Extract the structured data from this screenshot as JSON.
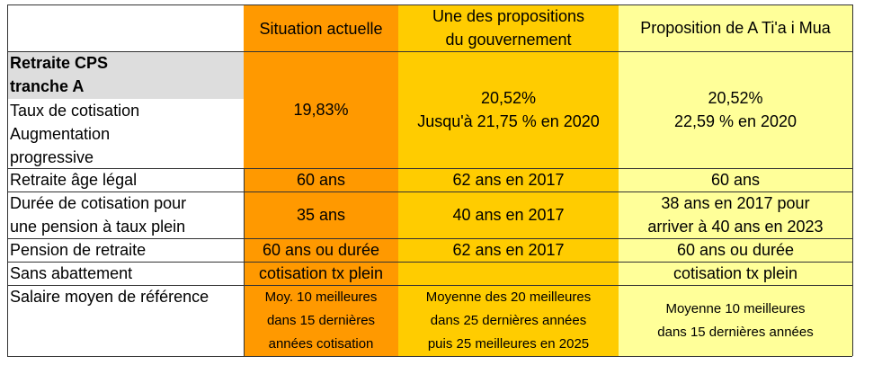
{
  "colors": {
    "current": "#ff9900",
    "government": "#ffcc00",
    "atiaimua": "#ffff99",
    "section": "#dddddd"
  },
  "header": {
    "col1": "Situation actuelle",
    "col2_line1": "Une des propositions",
    "col2_line2": "du gouvernement",
    "col3": "Proposition de A Ti'a i Mua"
  },
  "section": {
    "line1": "Retraite CPS",
    "line2": "tranche A"
  },
  "rows": [
    {
      "label_lines": [
        "Taux de cotisation",
        "Augmentation",
        "progressive"
      ],
      "col1": [
        "19,83%"
      ],
      "col2": [
        "20,52%",
        "Jusqu'à 21,75 % en 2020"
      ],
      "col3": [
        "20,52%",
        "22,59 % en 2020"
      ]
    },
    {
      "label_lines": [
        "Retraite âge légal"
      ],
      "col1": [
        "60 ans"
      ],
      "col2": [
        "62 ans en 2017"
      ],
      "col3": [
        "60 ans"
      ]
    },
    {
      "label_lines": [
        "Durée de cotisation pour",
        "une pension à taux plein"
      ],
      "col1": [
        "35 ans"
      ],
      "col2": [
        "40 ans en 2017"
      ],
      "col3": [
        "38 ans en 2017 pour",
        "arriver à 40 ans en 2023"
      ]
    },
    {
      "label_lines": [
        "Pension de retraite"
      ],
      "col1": [
        "60 ans ou durée"
      ],
      "col2": [
        "62 ans en 2017"
      ],
      "col3": [
        "60 ans ou durée"
      ]
    },
    {
      "label_lines": [
        "Sans abattement"
      ],
      "col1": [
        "cotisation tx plein"
      ],
      "col2": [
        ""
      ],
      "col3": [
        "cotisation tx plein"
      ]
    },
    {
      "label_lines": [
        "Salaire moyen de référence"
      ],
      "col1": [
        "Moy. 10 meilleures",
        "dans 15 dernières",
        "années cotisation"
      ],
      "col2": [
        "Moyenne des 20 meilleures",
        "dans 25 dernières années",
        "puis 25 meilleures en 2025"
      ],
      "col3": [
        "Moyenne 10 meilleures",
        "dans 15 dernières années"
      ]
    }
  ]
}
